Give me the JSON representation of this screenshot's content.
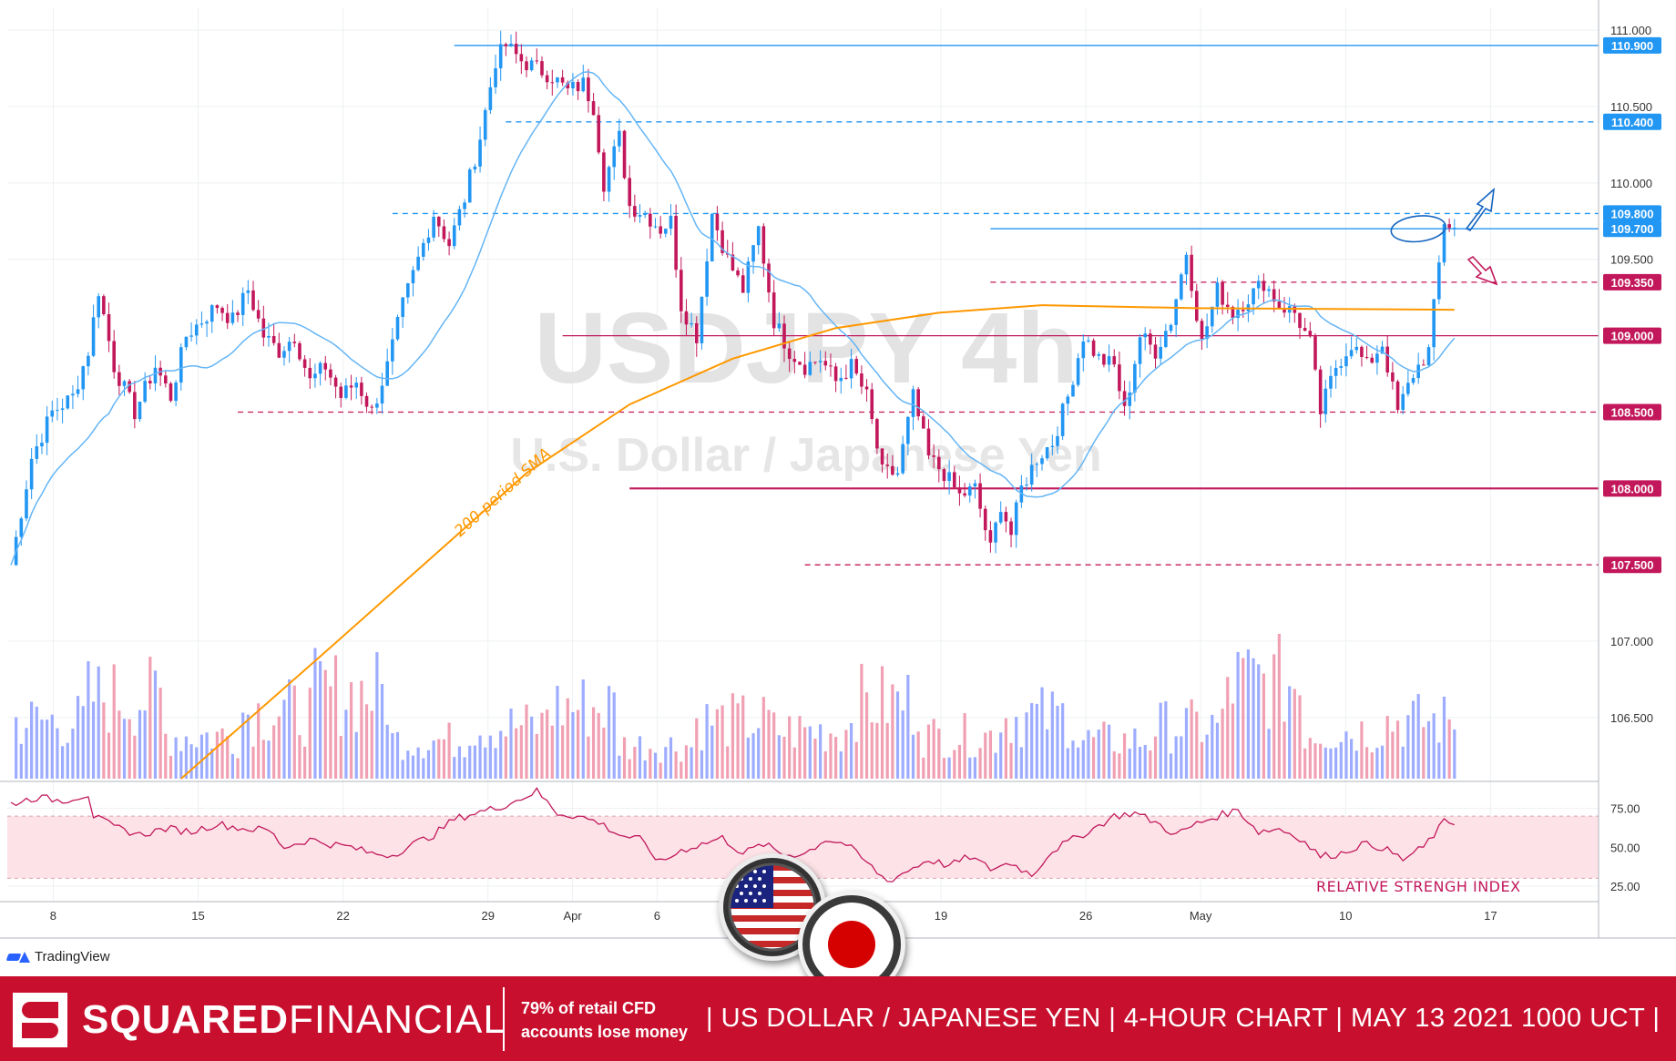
{
  "symbol": {
    "ticker": "USDJPY",
    "interval": "4h",
    "description": "U.S. Dollar / Japanese Yen"
  },
  "price_axis": {
    "ticks": [
      "111.000",
      "110.500",
      "110.000",
      "109.500",
      "107.000",
      "106.500"
    ],
    "tick_values": [
      111.0,
      110.5,
      110.0,
      109.5,
      107.0,
      106.5
    ],
    "levels": [
      {
        "label": "110.900",
        "value": 110.9,
        "color": "#2196f3",
        "style": "solid",
        "x_start": "30"
      },
      {
        "label": "110.400",
        "value": 110.4,
        "color": "#2196f3",
        "style": "dashed",
        "x_start": "Apr 1"
      },
      {
        "label": "109.800",
        "value": 109.8,
        "color": "#2196f3",
        "style": "dashed",
        "x_start": "28"
      },
      {
        "label": "109.700",
        "value": 109.7,
        "color": "#2196f3",
        "style": "solid",
        "x_start": "May 1"
      },
      {
        "label": "109.350",
        "value": 109.35,
        "color": "#c2185b",
        "style": "dashed",
        "x_start": "May 1"
      },
      {
        "label": "109.000",
        "value": 109.0,
        "color": "#c2185b",
        "style": "solid",
        "x_start": "Apr 6"
      },
      {
        "label": "108.500",
        "value": 108.5,
        "color": "#c2185b",
        "style": "dashed",
        "x_start": "18"
      },
      {
        "label": "108.000",
        "value": 108.0,
        "color": "#c2185b",
        "style": "solid-thick",
        "x_start": "Apr 11"
      },
      {
        "label": "107.500",
        "value": 107.5,
        "color": "#c2185b",
        "style": "dashed",
        "x_start": "Apr 19"
      }
    ]
  },
  "rsi_axis": {
    "ticks": [
      "75.00",
      "50.00",
      "25.00"
    ],
    "tick_values": [
      75,
      50,
      25
    ],
    "band": [
      30,
      70
    ],
    "label": "RELATIVE STRENGH INDEX"
  },
  "time_axis": {
    "labels": [
      "8",
      "15",
      "22",
      "29",
      "Apr",
      "6",
      "19",
      "26",
      "May",
      "10",
      "17"
    ]
  },
  "annotations": {
    "sma_label": "200-period SMA"
  },
  "colors": {
    "up": "#2196f3",
    "down": "#c2185b",
    "sma200": "#ff9800",
    "sma_fast": "#64b5f6",
    "volume_up": "#8c9eff",
    "volume_down": "#ef8fa6",
    "rsi": "#c2185b",
    "rsi_band": "#fde3e8",
    "brand": "#c8102e"
  },
  "chart_data": {
    "type": "candlestick",
    "ylim": [
      106.1,
      111.15
    ],
    "rsi_ylim": [
      15,
      90
    ],
    "close_path": [
      [
        0,
        107.5
      ],
      [
        4,
        108.2
      ],
      [
        8,
        108.5
      ],
      [
        12,
        108.6
      ],
      [
        15,
        108.9
      ],
      [
        17,
        109.3
      ],
      [
        20,
        108.8
      ],
      [
        24,
        108.5
      ],
      [
        28,
        108.8
      ],
      [
        31,
        108.6
      ],
      [
        34,
        109.0
      ],
      [
        37,
        109.1
      ],
      [
        40,
        109.2
      ],
      [
        43,
        109.1
      ],
      [
        46,
        109.3
      ],
      [
        49,
        109.0
      ],
      [
        52,
        108.9
      ],
      [
        55,
        109.0
      ],
      [
        58,
        108.7
      ],
      [
        61,
        108.8
      ],
      [
        64,
        108.6
      ],
      [
        67,
        108.7
      ],
      [
        70,
        108.5
      ],
      [
        73,
        108.8
      ],
      [
        76,
        109.2
      ],
      [
        79,
        109.5
      ],
      [
        82,
        109.8
      ],
      [
        85,
        109.6
      ],
      [
        88,
        109.9
      ],
      [
        91,
        110.3
      ],
      [
        94,
        110.8
      ],
      [
        96,
        110.9
      ],
      [
        99,
        110.8
      ],
      [
        102,
        110.75
      ],
      [
        105,
        110.7
      ],
      [
        108,
        110.6
      ],
      [
        111,
        110.65
      ],
      [
        113,
        110.5
      ],
      [
        115,
        110.0
      ],
      [
        118,
        110.3
      ],
      [
        120,
        109.85
      ],
      [
        123,
        109.8
      ],
      [
        126,
        109.7
      ],
      [
        128,
        109.75
      ],
      [
        130,
        109.2
      ],
      [
        133,
        109.0
      ],
      [
        136,
        109.8
      ],
      [
        139,
        109.5
      ],
      [
        142,
        109.3
      ],
      [
        145,
        109.7
      ],
      [
        148,
        109.1
      ],
      [
        151,
        108.9
      ],
      [
        154,
        108.8
      ],
      [
        157,
        108.85
      ],
      [
        160,
        108.7
      ],
      [
        163,
        108.8
      ],
      [
        166,
        108.6
      ],
      [
        169,
        108.1
      ],
      [
        172,
        108.1
      ],
      [
        175,
        108.6
      ],
      [
        178,
        108.2
      ],
      [
        181,
        108.1
      ],
      [
        184,
        107.95
      ],
      [
        187,
        108.0
      ],
      [
        190,
        107.6
      ],
      [
        192,
        107.9
      ],
      [
        194,
        107.7
      ],
      [
        196,
        108.0
      ],
      [
        199,
        108.2
      ],
      [
        202,
        108.3
      ],
      [
        205,
        108.6
      ],
      [
        208,
        109.0
      ],
      [
        211,
        108.85
      ],
      [
        214,
        108.8
      ],
      [
        216,
        108.5
      ],
      [
        219,
        109.0
      ],
      [
        222,
        108.9
      ],
      [
        225,
        109.1
      ],
      [
        228,
        109.55
      ],
      [
        231,
        108.95
      ],
      [
        234,
        109.3
      ],
      [
        237,
        109.15
      ],
      [
        240,
        109.25
      ],
      [
        243,
        109.35
      ],
      [
        246,
        109.2
      ],
      [
        249,
        109.15
      ],
      [
        252,
        108.95
      ],
      [
        254,
        108.5
      ],
      [
        257,
        108.8
      ],
      [
        260,
        108.95
      ],
      [
        263,
        108.8
      ],
      [
        266,
        108.95
      ],
      [
        269,
        108.5
      ],
      [
        272,
        108.75
      ],
      [
        275,
        108.9
      ],
      [
        278,
        109.75
      ],
      [
        280,
        109.7
      ]
    ],
    "volume_path": [
      0.6,
      0.85,
      0.45,
      0.7,
      0.9,
      0.4,
      0.55,
      0.75,
      0.35,
      0.6,
      0.5,
      0.8,
      0.45,
      0.65,
      0.4,
      0.55,
      1.0,
      0.5,
      0.6,
      0.7
    ],
    "rsi_path": [
      [
        0,
        78
      ],
      [
        5,
        82
      ],
      [
        10,
        80
      ],
      [
        15,
        84
      ],
      [
        16,
        70
      ],
      [
        20,
        63
      ],
      [
        25,
        58
      ],
      [
        30,
        62
      ],
      [
        35,
        60
      ],
      [
        40,
        65
      ],
      [
        45,
        62
      ],
      [
        50,
        61
      ],
      [
        53,
        50
      ],
      [
        58,
        55
      ],
      [
        62,
        52
      ],
      [
        66,
        50
      ],
      [
        70,
        46
      ],
      [
        74,
        45
      ],
      [
        78,
        52
      ],
      [
        82,
        58
      ],
      [
        86,
        68
      ],
      [
        90,
        72
      ],
      [
        94,
        75
      ],
      [
        98,
        80
      ],
      [
        102,
        86
      ],
      [
        106,
        72
      ],
      [
        110,
        70
      ],
      [
        114,
        66
      ],
      [
        118,
        58
      ],
      [
        122,
        55
      ],
      [
        126,
        40
      ],
      [
        130,
        48
      ],
      [
        134,
        52
      ],
      [
        138,
        56
      ],
      [
        142,
        46
      ],
      [
        146,
        52
      ],
      [
        150,
        45
      ],
      [
        154,
        46
      ],
      [
        158,
        55
      ],
      [
        162,
        52
      ],
      [
        166,
        40
      ],
      [
        170,
        28
      ],
      [
        174,
        35
      ],
      [
        178,
        42
      ],
      [
        182,
        38
      ],
      [
        186,
        44
      ],
      [
        190,
        36
      ],
      [
        194,
        40
      ],
      [
        198,
        32
      ],
      [
        202,
        48
      ],
      [
        206,
        55
      ],
      [
        210,
        62
      ],
      [
        214,
        70
      ],
      [
        218,
        72
      ],
      [
        222,
        66
      ],
      [
        226,
        58
      ],
      [
        230,
        65
      ],
      [
        234,
        70
      ],
      [
        238,
        74
      ],
      [
        242,
        60
      ],
      [
        246,
        62
      ],
      [
        250,
        56
      ],
      [
        254,
        44
      ],
      [
        258,
        46
      ],
      [
        262,
        52
      ],
      [
        266,
        50
      ],
      [
        270,
        42
      ],
      [
        274,
        50
      ],
      [
        278,
        66
      ],
      [
        280,
        66
      ]
    ]
  }
}
